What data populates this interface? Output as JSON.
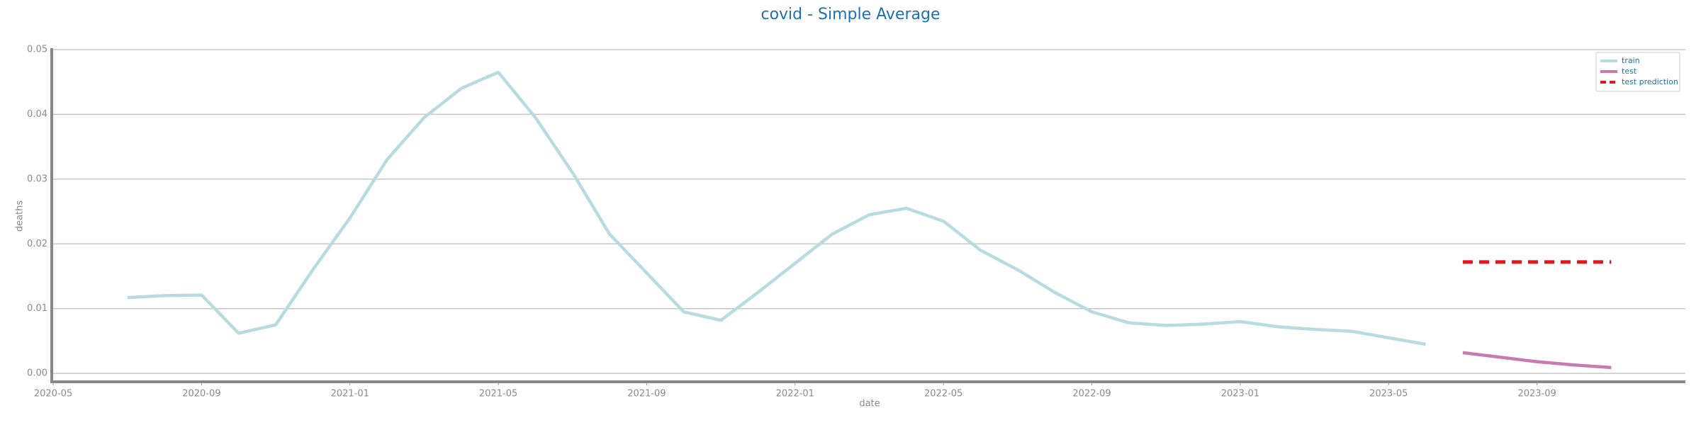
{
  "chart_data": {
    "type": "line",
    "title": "covid - Simple Average",
    "x_label": "date",
    "y_label": "deaths",
    "xlim": [
      "2020-05",
      "2024-01"
    ],
    "xticks": [
      "2020-05",
      "2020-09",
      "2021-01",
      "2021-05",
      "2021-09",
      "2022-01",
      "2022-05",
      "2022-09",
      "2023-01",
      "2023-05",
      "2023-09"
    ],
    "ylim": [
      -0.0013,
      0.05
    ],
    "yticks": [
      {
        "value": 0,
        "label": "0.00"
      },
      0.01,
      0.02,
      0.03,
      0.04,
      0.05
    ],
    "grid": true,
    "legend": "upper right",
    "series": [
      {
        "name": "train",
        "color": "#b7dbe0",
        "dash": false,
        "x": [
          "2020-07",
          "2020-08",
          "2020-09",
          "2020-10",
          "2020-11",
          "2020-12",
          "2021-01",
          "2021-02",
          "2021-03",
          "2021-04",
          "2021-05",
          "2021-06",
          "2021-07",
          "2021-08",
          "2021-09",
          "2021-10",
          "2021-11",
          "2021-12",
          "2022-01",
          "2022-02",
          "2022-03",
          "2022-04",
          "2022-05",
          "2022-06",
          "2022-07",
          "2022-08",
          "2022-09",
          "2022-10",
          "2022-11",
          "2022-12",
          "2023-01",
          "2023-02",
          "2023-03",
          "2023-04",
          "2023-05",
          "2023-06"
        ],
        "values": [
          0.0117,
          0.012,
          0.0121,
          0.0062,
          0.0075,
          0.016,
          0.024,
          0.033,
          0.0395,
          0.044,
          0.0465,
          0.0395,
          0.031,
          0.0215,
          0.0155,
          0.0095,
          0.0082,
          0.0125,
          0.017,
          0.0215,
          0.0245,
          0.0255,
          0.0235,
          0.019,
          0.016,
          0.0125,
          0.0095,
          0.0078,
          0.0074,
          0.0076,
          0.008,
          0.0072,
          0.0068,
          0.0065,
          0.0055,
          0.0045
        ]
      },
      {
        "name": "test",
        "color": "#c77bb1",
        "dash": false,
        "x": [
          "2023-07",
          "2023-08",
          "2023-09",
          "2023-10",
          "2023-11"
        ],
        "values": [
          0.0032,
          0.0025,
          0.0018,
          0.0013,
          0.0009
        ]
      },
      {
        "name": "test prediction",
        "color": "#e8141c",
        "dash": true,
        "x": [
          "2023-07",
          "2023-08",
          "2023-09",
          "2023-10",
          "2023-11"
        ],
        "values": [
          0.0172,
          0.0172,
          0.0172,
          0.0172,
          0.0172
        ]
      }
    ]
  }
}
